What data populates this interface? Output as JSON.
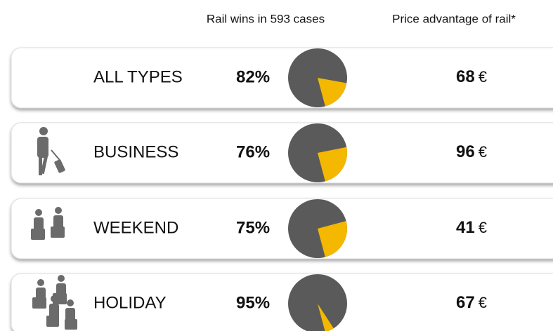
{
  "headers": {
    "share": "Rail wins in 593 cases",
    "price": "Price advantage of rail*"
  },
  "currency": "€",
  "colors": {
    "win": "#5a5a5a",
    "rest": "#f5b800"
  },
  "rows": [
    {
      "label": "ALL TYPES",
      "share": 82,
      "share_label": "82%",
      "price": 68
    },
    {
      "label": "BUSINESS",
      "share": 76,
      "share_label": "76%",
      "price": 96
    },
    {
      "label": "WEEKEND",
      "share": 75,
      "share_label": "75%",
      "price": 41
    },
    {
      "label": "HOLIDAY",
      "share": 95,
      "share_label": "95%",
      "price": 67
    }
  ]
}
